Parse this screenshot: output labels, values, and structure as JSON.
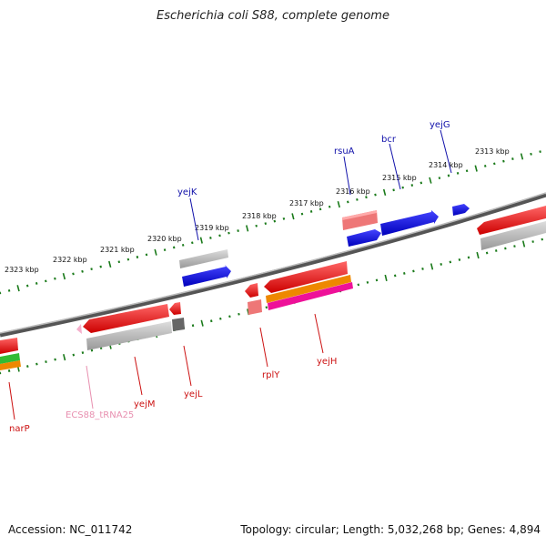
{
  "title": "Escherichia coli S88, complete genome",
  "footer": {
    "accession": "Accession: NC_011742",
    "topology": "Topology: circular; Length: 5,032,268 bp; Genes: 4,894"
  },
  "colors": {
    "backbone": "#777777",
    "tick": "#1a7a1a",
    "cds_red": "#ee1111",
    "cds_blue": "#1111dd",
    "gray": "#aaaaaa",
    "salmon": "#ee7777",
    "orange": "#ee8800",
    "magenta": "#ee1199",
    "green": "#33bb33",
    "tRNA": "#f0a0c0",
    "label_red": "#cc1111",
    "label_blue": "#1111aa",
    "label_pink": "#e890b0"
  },
  "scale_labels": [
    "2323 kbp",
    "2322 kbp",
    "2321 kbp",
    "2320 kbp",
    "2319 kbp",
    "2318 kbp",
    "2317 kbp",
    "2316 kbp",
    "2315 kbp",
    "2314 kbp",
    "2313 kbp"
  ],
  "gene_labels_top": [
    "yejK",
    "rsuA",
    "bcr",
    "yejG"
  ],
  "gene_labels_bottom": [
    "narP",
    "ECS88_tRNA25",
    "yejM",
    "yejL",
    "rplY",
    "yejH"
  ]
}
